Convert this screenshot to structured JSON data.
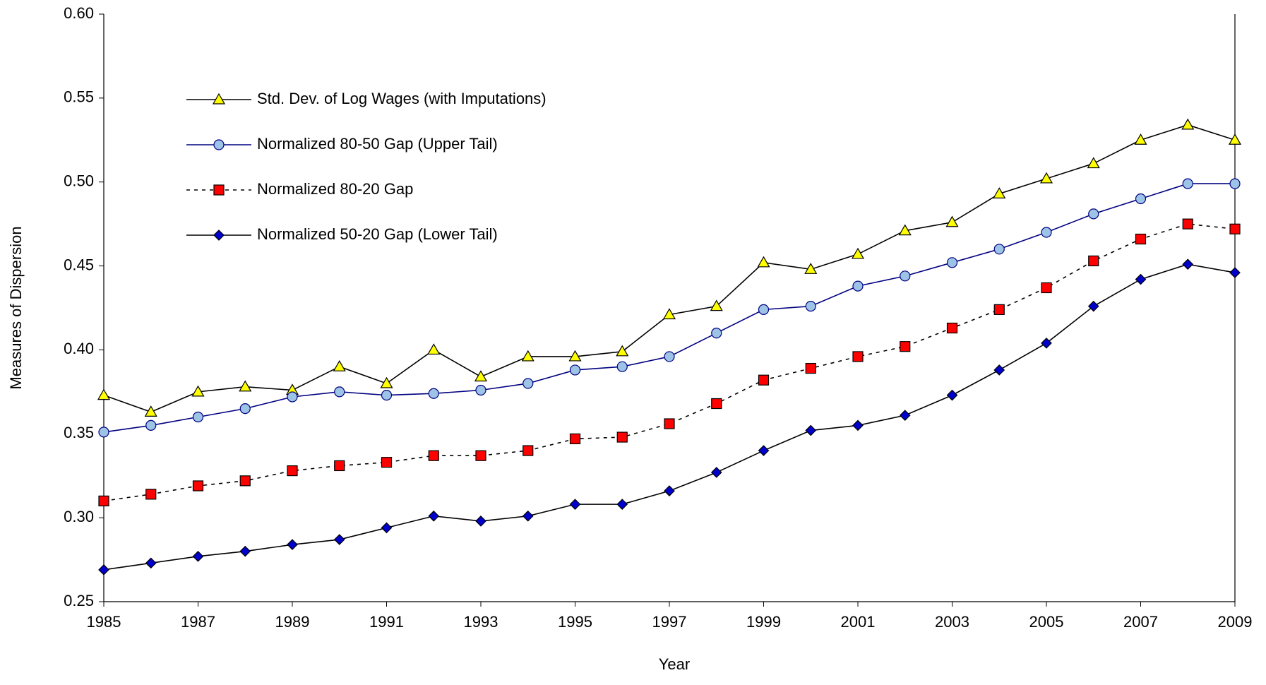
{
  "chart_data": {
    "type": "line",
    "x_label": "Year",
    "y_label": "Measures of Dispersion",
    "x": [
      1985,
      1986,
      1987,
      1988,
      1989,
      1990,
      1991,
      1992,
      1993,
      1994,
      1995,
      1996,
      1997,
      1998,
      1999,
      2000,
      2001,
      2002,
      2003,
      2004,
      2005,
      2006,
      2007,
      2008,
      2009
    ],
    "xlim": [
      1985,
      2009
    ],
    "xticks": [
      1985,
      1987,
      1989,
      1991,
      1993,
      1995,
      1997,
      1999,
      2001,
      2003,
      2005,
      2007,
      2009
    ],
    "ylim": [
      0.25,
      0.6
    ],
    "yticks": [
      0.25,
      {
        "value": 0.3,
        "label": "0.30"
      },
      0.35,
      {
        "value": 0.4,
        "label": "0.40"
      },
      0.45,
      {
        "value": 0.5,
        "label": "0.50"
      },
      0.55,
      {
        "value": 0.6,
        "label": "0.60"
      }
    ],
    "grid": false,
    "legend": "upper left",
    "series": [
      {
        "name": "Std. Dev. of Log Wages (with Imputations)",
        "color": "#000000",
        "marker": "triangle",
        "marker_color": "#ffff00",
        "dashed": false,
        "values": [
          0.373,
          0.363,
          0.375,
          0.378,
          0.376,
          0.39,
          0.38,
          0.4,
          0.384,
          0.396,
          0.396,
          0.399,
          0.421,
          0.426,
          0.452,
          0.448,
          0.457,
          0.471,
          0.476,
          0.493,
          0.502,
          0.511,
          0.525,
          0.534,
          0.525
        ]
      },
      {
        "name": "Normalized 80-50 Gap (Upper Tail)",
        "color": "#000080",
        "marker": "circle",
        "marker_color": "#9dc3e6",
        "dashed": false,
        "values": [
          0.351,
          0.355,
          0.36,
          0.365,
          0.372,
          0.375,
          0.373,
          0.374,
          0.376,
          0.38,
          0.388,
          0.39,
          0.396,
          0.41,
          0.424,
          0.426,
          0.438,
          0.444,
          0.452,
          0.46,
          0.47,
          0.481,
          0.49,
          0.499,
          0.499
        ]
      },
      {
        "name": "Normalized 80-20 Gap",
        "color": "#000000",
        "marker": "square",
        "marker_color": "#ff0000",
        "dashed": true,
        "values": [
          0.31,
          0.314,
          0.319,
          0.322,
          0.328,
          0.331,
          0.333,
          0.337,
          0.337,
          0.34,
          0.347,
          0.348,
          0.356,
          0.368,
          0.382,
          0.389,
          0.396,
          0.402,
          0.413,
          0.424,
          0.437,
          0.453,
          0.466,
          0.475,
          0.472
        ]
      },
      {
        "name": "Normalized 50-20 Gap (Lower Tail)",
        "color": "#000000",
        "marker": "diamond",
        "marker_color": "#0000cc",
        "dashed": false,
        "values": [
          0.269,
          0.273,
          0.277,
          0.28,
          0.284,
          0.287,
          0.294,
          0.301,
          0.298,
          0.301,
          0.308,
          0.308,
          0.316,
          0.327,
          0.34,
          0.352,
          0.355,
          0.361,
          0.373,
          0.388,
          0.404,
          0.426,
          0.442,
          0.451,
          0.446
        ]
      }
    ]
  }
}
